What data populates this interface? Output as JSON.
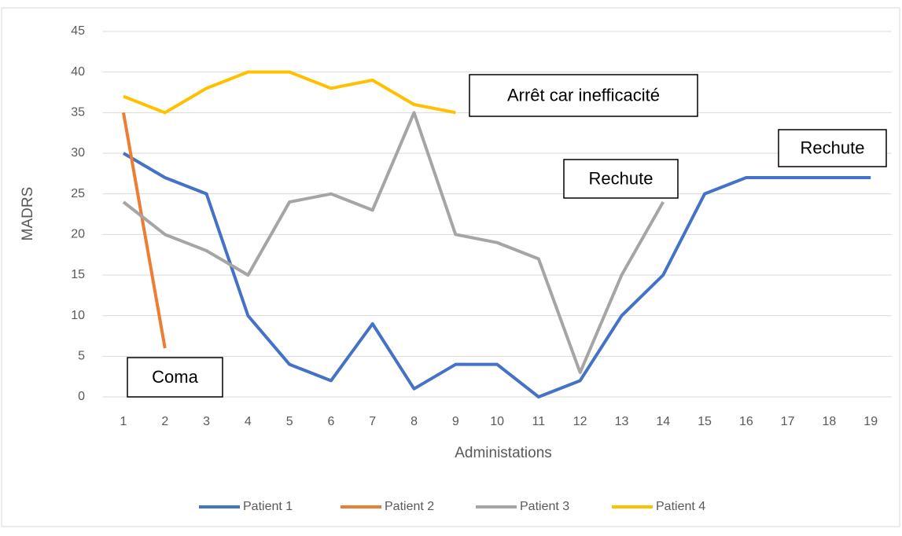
{
  "chart_data": {
    "type": "line",
    "categories": [
      "1",
      "2",
      "3",
      "4",
      "5",
      "6",
      "7",
      "8",
      "9",
      "10",
      "11",
      "12",
      "13",
      "14",
      "15",
      "16",
      "17",
      "18",
      "19"
    ],
    "series": [
      {
        "name": "Patient 1",
        "color": "#4472c4",
        "values": [
          30,
          27,
          25,
          10,
          4,
          2,
          9,
          1,
          4,
          4,
          0,
          2,
          10,
          15,
          25,
          27,
          27,
          27,
          27
        ]
      },
      {
        "name": "Patient 2",
        "color": "#ed7d31",
        "values": [
          35,
          6,
          null,
          null,
          null,
          null,
          null,
          null,
          null,
          null,
          null,
          null,
          null,
          null,
          null,
          null,
          null,
          null,
          null
        ]
      },
      {
        "name": "Patient 3",
        "color": "#a5a5a5",
        "values": [
          24,
          20,
          18,
          15,
          24,
          25,
          23,
          35,
          20,
          19,
          17,
          3,
          15,
          24,
          null,
          null,
          null,
          null,
          null
        ]
      },
      {
        "name": "Patient 4",
        "color": "#ffc000",
        "values": [
          37,
          35,
          38,
          40,
          40,
          38,
          39,
          36,
          35,
          null,
          null,
          null,
          null,
          null,
          null,
          null,
          null,
          null,
          null
        ]
      }
    ],
    "ylim": [
      0,
      45
    ],
    "yticks": [
      0,
      5,
      10,
      15,
      20,
      25,
      30,
      35,
      40,
      45
    ],
    "grid": true,
    "xlabel": "Administations",
    "ylabel": "MADRS",
    "annotations": [
      "Arrêt car inefficacité",
      "Rechute",
      "Rechute",
      "Coma"
    ],
    "legend": "bottom"
  }
}
